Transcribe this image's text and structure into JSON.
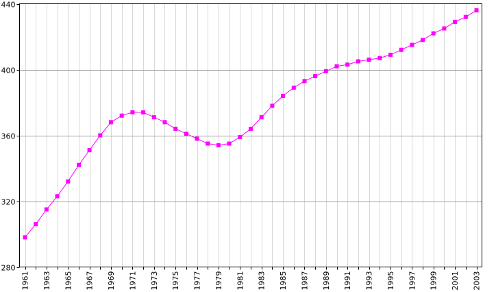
{
  "chart_data": {
    "type": "line",
    "title": "",
    "xlabel": "",
    "ylabel": "",
    "x": [
      1961,
      1962,
      1963,
      1964,
      1965,
      1966,
      1967,
      1968,
      1969,
      1970,
      1971,
      1972,
      1973,
      1974,
      1975,
      1976,
      1977,
      1978,
      1979,
      1980,
      1981,
      1982,
      1983,
      1984,
      1985,
      1986,
      1987,
      1988,
      1989,
      1990,
      1991,
      1992,
      1993,
      1994,
      1995,
      1996,
      1997,
      1998,
      1999,
      2000,
      2001,
      2002,
      2003
    ],
    "xlim": [
      1961,
      2003
    ],
    "ylim": [
      280,
      440
    ],
    "x_tick_labels": [
      "1961",
      "1963",
      "1965",
      "1967",
      "1969",
      "1971",
      "1973",
      "1975",
      "1977",
      "1979",
      "1981",
      "1983",
      "1985",
      "1987",
      "1989",
      "1991",
      "1993",
      "1995",
      "1997",
      "1999",
      "2001",
      "2003"
    ],
    "y_tick_labels": [
      "280",
      "320",
      "360",
      "400",
      "440"
    ],
    "grid": true,
    "legend": "none",
    "series": [
      {
        "color": "#ff00ff",
        "marker": "square",
        "values": [
          298,
          306,
          315,
          323,
          332,
          342,
          351,
          360,
          368,
          372,
          374,
          374,
          371,
          368,
          364,
          361,
          358,
          355,
          354,
          355,
          359,
          364,
          371,
          378,
          384,
          389,
          393,
          396,
          399,
          402,
          403,
          405,
          406,
          407,
          409,
          412,
          415,
          418,
          422,
          425,
          429,
          432,
          436
        ]
      }
    ]
  }
}
